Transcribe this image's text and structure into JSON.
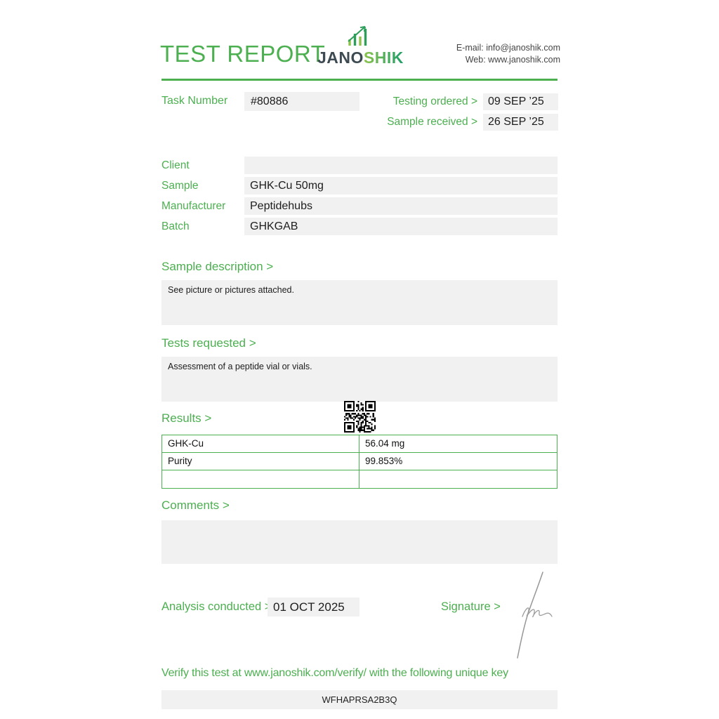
{
  "header": {
    "title": "TEST REPORT",
    "logo": {
      "part1": "JANO",
      "part2": "SHIK"
    },
    "contact": {
      "email_label": "E-mail:",
      "email": "info@janoshik.com",
      "web_label": "Web:",
      "web": "www.janoshik.com"
    }
  },
  "task": {
    "label": "Task Number",
    "value": "#80886"
  },
  "dates": [
    {
      "label": "Testing ordered >",
      "value": "09 SEP ’25"
    },
    {
      "label": "Sample received >",
      "value": "26 SEP ’25"
    }
  ],
  "info_fields": [
    {
      "label": "Client",
      "value": ""
    },
    {
      "label": "Sample",
      "value": "GHK-Cu 50mg"
    },
    {
      "label": "Manufacturer",
      "value": "Peptidehubs"
    },
    {
      "label": "Batch",
      "value": "GHKGAB"
    }
  ],
  "sections": {
    "sample_description": {
      "heading": "Sample description >",
      "text": "See picture or pictures attached."
    },
    "tests_requested": {
      "heading": "Tests requested >",
      "text": "Assessment of a peptide vial or vials."
    },
    "results": {
      "heading": "Results >",
      "rows": [
        {
          "name": "GHK-Cu",
          "value": "56.04 mg"
        },
        {
          "name": "Purity",
          "value": "99.853%"
        },
        {
          "name": "",
          "value": ""
        }
      ]
    },
    "comments": {
      "heading": "Comments >",
      "text": ""
    }
  },
  "footer": {
    "analysis_label": "Analysis conducted >",
    "analysis_date": "01 OCT 2025",
    "signature_label": "Signature >",
    "verify_text": "Verify this test at www.janoshik.com/verify/ with the following unique key",
    "unique_key": "WFHAPRSA2B3Q"
  },
  "colors": {
    "accent_green": "#4caf50",
    "logo_dark": "#3d4a52",
    "field_background": "#f1f1f1"
  }
}
